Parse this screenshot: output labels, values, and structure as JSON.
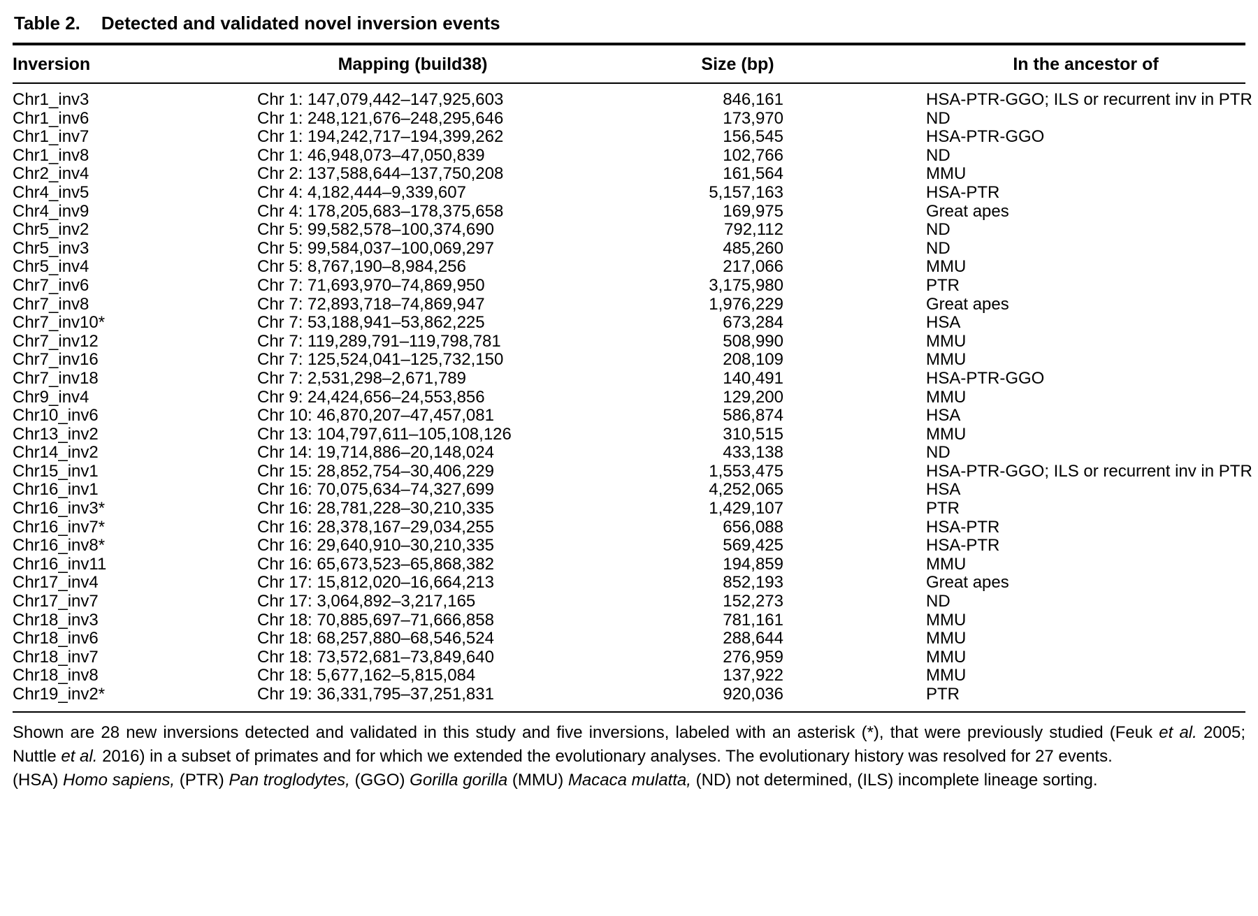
{
  "table": {
    "label": "Table 2.",
    "title": "Detected and validated novel inversion events",
    "columns": [
      "Inversion",
      "Mapping (build38)",
      "Size (bp)",
      "In the ancestor of"
    ],
    "rows": [
      {
        "inversion": "Chr1_inv3",
        "mapping": "Chr 1: 147,079,442–147,925,603",
        "size": "846,161",
        "ancestor": "HSA-PTR-GGO; ILS or recurrent inv in PTR"
      },
      {
        "inversion": "Chr1_inv6",
        "mapping": "Chr 1: 248,121,676–248,295,646",
        "size": "173,970",
        "ancestor": "ND"
      },
      {
        "inversion": "Chr1_inv7",
        "mapping": "Chr 1: 194,242,717–194,399,262",
        "size": "156,545",
        "ancestor": "HSA-PTR-GGO"
      },
      {
        "inversion": "Chr1_inv8",
        "mapping": "Chr 1: 46,948,073–47,050,839",
        "size": "102,766",
        "ancestor": "ND"
      },
      {
        "inversion": "Chr2_inv4",
        "mapping": "Chr 2: 137,588,644–137,750,208",
        "size": "161,564",
        "ancestor": "MMU"
      },
      {
        "inversion": "Chr4_inv5",
        "mapping": "Chr 4: 4,182,444–9,339,607",
        "size": "5,157,163",
        "ancestor": "HSA-PTR"
      },
      {
        "inversion": "Chr4_inv9",
        "mapping": "Chr 4: 178,205,683–178,375,658",
        "size": "169,975",
        "ancestor": "Great apes"
      },
      {
        "inversion": "Chr5_inv2",
        "mapping": "Chr 5: 99,582,578–100,374,690",
        "size": "792,112",
        "ancestor": "ND"
      },
      {
        "inversion": "Chr5_inv3",
        "mapping": "Chr 5: 99,584,037–100,069,297",
        "size": "485,260",
        "ancestor": "ND"
      },
      {
        "inversion": "Chr5_inv4",
        "mapping": "Chr 5: 8,767,190–8,984,256",
        "size": "217,066",
        "ancestor": "MMU"
      },
      {
        "inversion": "Chr7_inv6",
        "mapping": "Chr 7: 71,693,970–74,869,950",
        "size": "3,175,980",
        "ancestor": "PTR"
      },
      {
        "inversion": "Chr7_inv8",
        "mapping": "Chr 7: 72,893,718–74,869,947",
        "size": "1,976,229",
        "ancestor": "Great apes"
      },
      {
        "inversion": "Chr7_inv10*",
        "mapping": "Chr 7: 53,188,941–53,862,225",
        "size": "673,284",
        "ancestor": "HSA"
      },
      {
        "inversion": "Chr7_inv12",
        "mapping": "Chr 7: 119,289,791–119,798,781",
        "size": "508,990",
        "ancestor": "MMU"
      },
      {
        "inversion": "Chr7_inv16",
        "mapping": "Chr 7: 125,524,041–125,732,150",
        "size": "208,109",
        "ancestor": "MMU"
      },
      {
        "inversion": "Chr7_inv18",
        "mapping": "Chr 7: 2,531,298–2,671,789",
        "size": "140,491",
        "ancestor": "HSA-PTR-GGO"
      },
      {
        "inversion": "Chr9_inv4",
        "mapping": "Chr 9: 24,424,656–24,553,856",
        "size": "129,200",
        "ancestor": "MMU"
      },
      {
        "inversion": "Chr10_inv6",
        "mapping": "Chr 10: 46,870,207–47,457,081",
        "size": "586,874",
        "ancestor": "HSA"
      },
      {
        "inversion": "Chr13_inv2",
        "mapping": "Chr 13: 104,797,611–105,108,126",
        "size": "310,515",
        "ancestor": "MMU"
      },
      {
        "inversion": "Chr14_inv2",
        "mapping": "Chr 14: 19,714,886–20,148,024",
        "size": "433,138",
        "ancestor": "ND"
      },
      {
        "inversion": "Chr15_inv1",
        "mapping": "Chr 15: 28,852,754–30,406,229",
        "size": "1,553,475",
        "ancestor": "HSA-PTR-GGO; ILS or recurrent inv in PTR"
      },
      {
        "inversion": "Chr16_inv1",
        "mapping": "Chr 16: 70,075,634–74,327,699",
        "size": "4,252,065",
        "ancestor": "HSA"
      },
      {
        "inversion": "Chr16_inv3*",
        "mapping": "Chr 16: 28,781,228–30,210,335",
        "size": "1,429,107",
        "ancestor": "PTR"
      },
      {
        "inversion": "Chr16_inv7*",
        "mapping": "Chr 16: 28,378,167–29,034,255",
        "size": "656,088",
        "ancestor": "HSA-PTR"
      },
      {
        "inversion": "Chr16_inv8*",
        "mapping": "Chr 16: 29,640,910–30,210,335",
        "size": "569,425",
        "ancestor": "HSA-PTR"
      },
      {
        "inversion": "Chr16_inv11",
        "mapping": "Chr 16: 65,673,523–65,868,382",
        "size": "194,859",
        "ancestor": "MMU"
      },
      {
        "inversion": "Chr17_inv4",
        "mapping": "Chr 17: 15,812,020–16,664,213",
        "size": "852,193",
        "ancestor": "Great apes"
      },
      {
        "inversion": "Chr17_inv7",
        "mapping": "Chr 17: 3,064,892–3,217,165",
        "size": "152,273",
        "ancestor": "ND"
      },
      {
        "inversion": "Chr18_inv3",
        "mapping": "Chr 18: 70,885,697–71,666,858",
        "size": "781,161",
        "ancestor": "MMU"
      },
      {
        "inversion": "Chr18_inv6",
        "mapping": "Chr 18: 68,257,880–68,546,524",
        "size": "288,644",
        "ancestor": "MMU"
      },
      {
        "inversion": "Chr18_inv7",
        "mapping": "Chr 18: 73,572,681–73,849,640",
        "size": "276,959",
        "ancestor": "MMU"
      },
      {
        "inversion": "Chr18_inv8",
        "mapping": "Chr 18: 5,677,162–5,815,084",
        "size": "137,922",
        "ancestor": "MMU"
      },
      {
        "inversion": "Chr19_inv2*",
        "mapping": "Chr 19: 36,331,795–37,251,831",
        "size": "920,036",
        "ancestor": "PTR"
      }
    ]
  },
  "footnotes": {
    "paragraph1_segments": [
      {
        "text": "Shown are 28 new inversions detected and validated in this study and five inversions, labeled with an asterisk (*), that were previously studied (Feuk ",
        "italic": false
      },
      {
        "text": "et al.",
        "italic": true
      },
      {
        "text": " 2005; Nuttle ",
        "italic": false
      },
      {
        "text": "et al.",
        "italic": true
      },
      {
        "text": " 2016) in a subset of primates and for which we extended the evolutionary analyses. The evolutionary history was resolved for 27 events.",
        "italic": false
      }
    ],
    "paragraph2_segments": [
      {
        "text": "(HSA) ",
        "italic": false
      },
      {
        "text": "Homo sapiens,",
        "italic": true
      },
      {
        "text": " (PTR) ",
        "italic": false
      },
      {
        "text": "Pan troglodytes,",
        "italic": true
      },
      {
        "text": " (GGO) ",
        "italic": false
      },
      {
        "text": "Gorilla gorilla",
        "italic": true
      },
      {
        "text": " (MMU) ",
        "italic": false
      },
      {
        "text": "Macaca mulatta,",
        "italic": true
      },
      {
        "text": " (ND) not determined, (ILS) incomplete lineage sorting.",
        "italic": false
      }
    ]
  }
}
